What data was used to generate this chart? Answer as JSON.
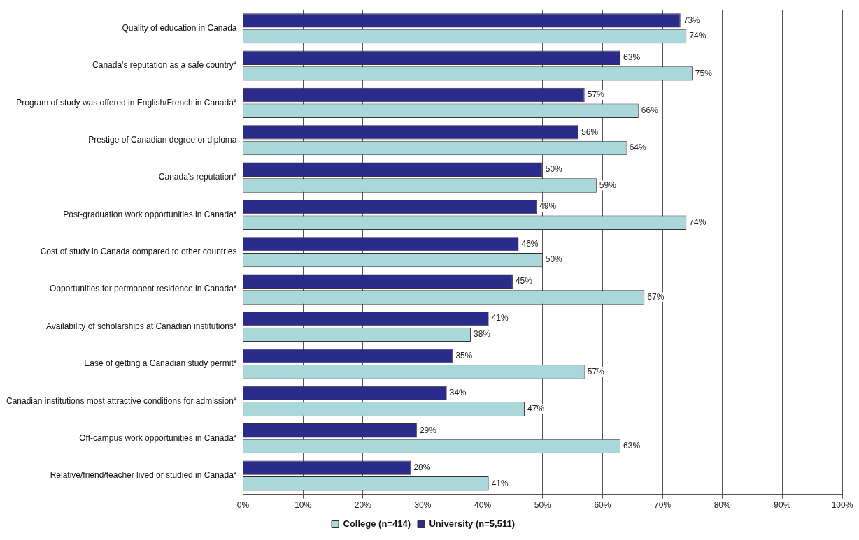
{
  "chart_data": {
    "type": "bar",
    "orientation": "horizontal",
    "categories": [
      "Quality of education in Canada",
      "Canada's reputation as a safe country*",
      "Program of study was offered in English/French in Canada*",
      "Prestige of Canadian degree or diploma",
      "Canada's reputation*",
      "Post-graduation work opportunities in Canada*",
      "Cost of study in Canada compared to other countries",
      "Opportunities for permanent residence in Canada*",
      "Availability of scholarships at Canadian institutions*",
      "Ease of getting a Canadian study permit*",
      "Canadian institutions most attractive conditions for admission*",
      "Off-campus work opportunities in Canada*",
      "Relative/friend/teacher lived or studied in Canada*"
    ],
    "series": [
      {
        "name": "University (n=5,511)",
        "color": "#2b2b8c",
        "values": [
          73,
          63,
          57,
          56,
          50,
          49,
          46,
          45,
          41,
          35,
          34,
          29,
          28
        ],
        "value_labels": [
          "73%",
          "63%",
          "57%",
          "56%",
          "50%",
          "49%",
          "46%",
          "45%",
          "41%",
          "35%",
          "34%",
          "29%",
          "28%"
        ]
      },
      {
        "name": "College (n=414)",
        "color": "#a9d7da",
        "values": [
          74,
          75,
          66,
          64,
          59,
          74,
          50,
          67,
          38,
          57,
          47,
          63,
          41
        ],
        "value_labels": [
          "74%",
          "75%",
          "66%",
          "64%",
          "59%",
          "74%",
          "50%",
          "67%",
          "38%",
          "57%",
          "47%",
          "63%",
          "41%"
        ]
      }
    ],
    "xlim": [
      0,
      100
    ],
    "xticks": [
      {
        "value": 0,
        "label": "0%"
      },
      {
        "value": 10,
        "label": "10%"
      },
      {
        "value": 20,
        "label": "20%"
      },
      {
        "value": 30,
        "label": "30%"
      },
      {
        "value": 40,
        "label": "40%"
      },
      {
        "value": 50,
        "label": "50%"
      },
      {
        "value": 60,
        "label": "60%"
      },
      {
        "value": 70,
        "label": "70%"
      },
      {
        "value": 80,
        "label": "80%"
      },
      {
        "value": 90,
        "label": "90%"
      },
      {
        "value": 100,
        "label": "100%"
      }
    ],
    "grid": "x",
    "legend": "bottom"
  }
}
